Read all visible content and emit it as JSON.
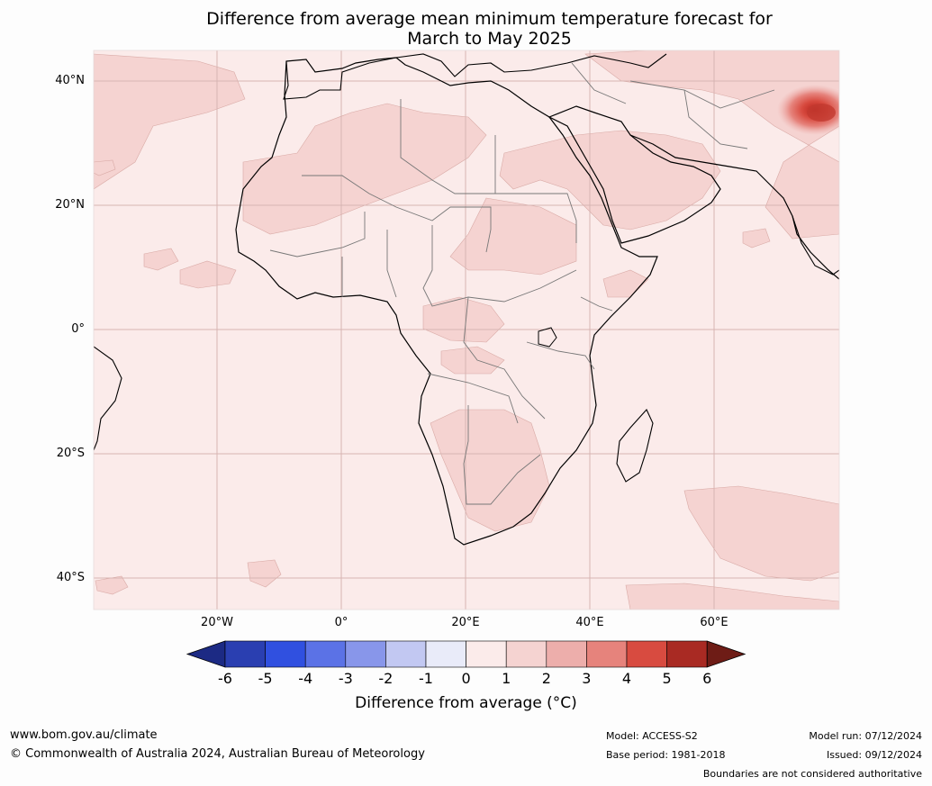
{
  "title_line1": "Difference from average mean minimum temperature forecast for",
  "title_line2": "March to May 2025",
  "lat_labels": [
    "40°N",
    "20°N",
    "0°",
    "20°S",
    "40°S"
  ],
  "lon_labels": [
    "20°W",
    "0°",
    "20°E",
    "40°E",
    "60°E"
  ],
  "colorbar": {
    "ticks": [
      "-6",
      "-5",
      "-4",
      "-3",
      "-2",
      "-1",
      "0",
      "1",
      "2",
      "3",
      "4",
      "5",
      "6"
    ],
    "colors": [
      "#1c2a84",
      "#2a3fb1",
      "#3050e0",
      "#5b72e6",
      "#8896ea",
      "#c2c8f2",
      "#e9ebf9",
      "#fbebea",
      "#f5d3d1",
      "#edaeab",
      "#e6837c",
      "#d84b40",
      "#a92a23",
      "#6e1c16"
    ],
    "label": "Difference from average (°C)"
  },
  "footer": {
    "website": "www.bom.gov.au/climate",
    "copyright": "© Commonwealth of Australia 2024, Australian Bureau of Meteorology",
    "model": "Model: ACCESS-S2",
    "base_period": "Base period: 1981-2018",
    "model_run": "Model run: 07/12/2024",
    "issued": "Issued: 09/12/2024",
    "disclaimer": "Boundaries are not considered authoritative"
  }
}
